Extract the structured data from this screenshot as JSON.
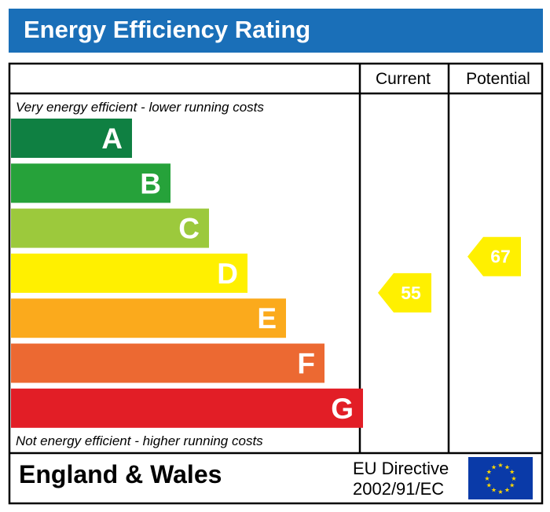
{
  "header": {
    "title": "Energy Efficiency Rating"
  },
  "chart_data": {
    "type": "bar",
    "title": "Energy Efficiency Rating",
    "columns": [
      "Current",
      "Potential"
    ],
    "top_note": "Very energy efficient - lower running costs",
    "bottom_note": "Not energy efficient - higher running costs",
    "bands": [
      {
        "letter": "A",
        "color": "#0f8042"
      },
      {
        "letter": "B",
        "color": "#26a23a"
      },
      {
        "letter": "C",
        "color": "#9cc93c"
      },
      {
        "letter": "D",
        "color": "#fff000"
      },
      {
        "letter": "E",
        "color": "#fbaa1c"
      },
      {
        "letter": "F",
        "color": "#ec6932"
      },
      {
        "letter": "G",
        "color": "#e21e26"
      }
    ],
    "current": {
      "value": 55,
      "band": "D"
    },
    "potential": {
      "value": 67,
      "band": "D"
    },
    "arrow_color": "#fff000"
  },
  "footer": {
    "region": "England & Wales",
    "directive_line1": "EU Directive",
    "directive_line2": "2002/91/EC",
    "flag_icon": "eu-flag-icon"
  }
}
